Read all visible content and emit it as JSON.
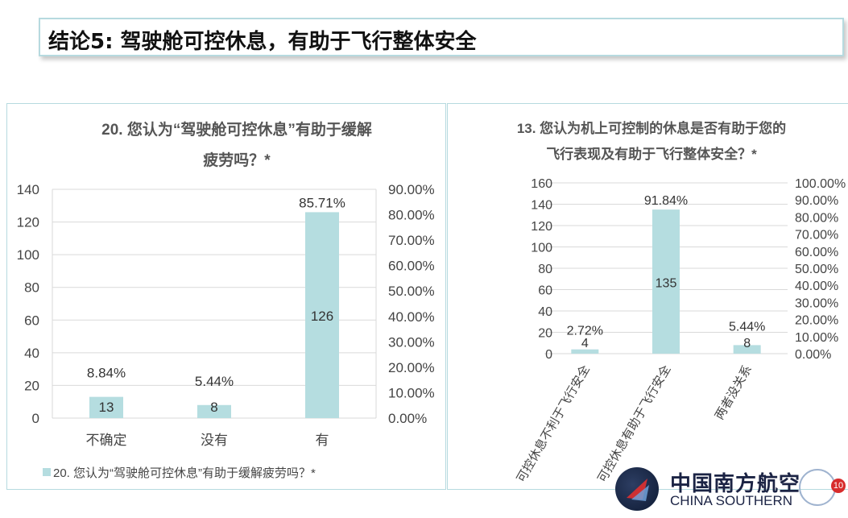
{
  "slide": {
    "title": "结论5: 驾驶舱可控休息，有助于飞行整体安全"
  },
  "logo": {
    "chinese": "中国南方航空",
    "english": "CHINA SOUTHERN",
    "page_number": "10"
  },
  "chart_data": [
    {
      "type": "bar",
      "title_lines": [
        "20. 您认为“驾驶舱可控休息”有助于缓解",
        "疲劳吗？*"
      ],
      "categories": [
        "不确定",
        "没有",
        "有"
      ],
      "values": [
        13,
        8,
        126
      ],
      "value_labels": [
        "13",
        "8",
        "126"
      ],
      "percent_labels": [
        "8.84%",
        "5.44%",
        "85.71%"
      ],
      "ylim": [
        0,
        140
      ],
      "y_ticks": [
        "0",
        "20",
        "40",
        "60",
        "80",
        "100",
        "120",
        "140"
      ],
      "y2_ticks": [
        "0.00%",
        "10.00%",
        "20.00%",
        "30.00%",
        "40.00%",
        "50.00%",
        "60.00%",
        "70.00%",
        "80.00%",
        "90.00%"
      ],
      "legend": "20. 您认为“驾驶舱可控休息”有助于缓解疲劳吗？*",
      "legend_position": "bottom",
      "grid": true,
      "bar_color": "#b5dde0"
    },
    {
      "type": "bar",
      "title_lines": [
        "13. 您认为机上可控制的休息是否有助于您的",
        "飞行表现及有助于飞行整体安全？*"
      ],
      "categories": [
        "可控休息不利于飞行安全",
        "可控休息有助于飞行安全",
        "两者没关系"
      ],
      "values": [
        4,
        135,
        8
      ],
      "value_labels": [
        "4",
        "135",
        "8"
      ],
      "percent_labels": [
        "2.72%",
        "91.84%",
        "5.44%"
      ],
      "ylim": [
        0,
        160
      ],
      "y_ticks": [
        "0",
        "20",
        "40",
        "60",
        "80",
        "100",
        "120",
        "140",
        "160"
      ],
      "y2_ticks": [
        "0.00%",
        "10.00%",
        "20.00%",
        "30.00%",
        "40.00%",
        "50.00%",
        "60.00%",
        "70.00%",
        "80.00%",
        "90.00%",
        "100.00%"
      ],
      "grid": true,
      "bar_color": "#b5dde0"
    }
  ]
}
